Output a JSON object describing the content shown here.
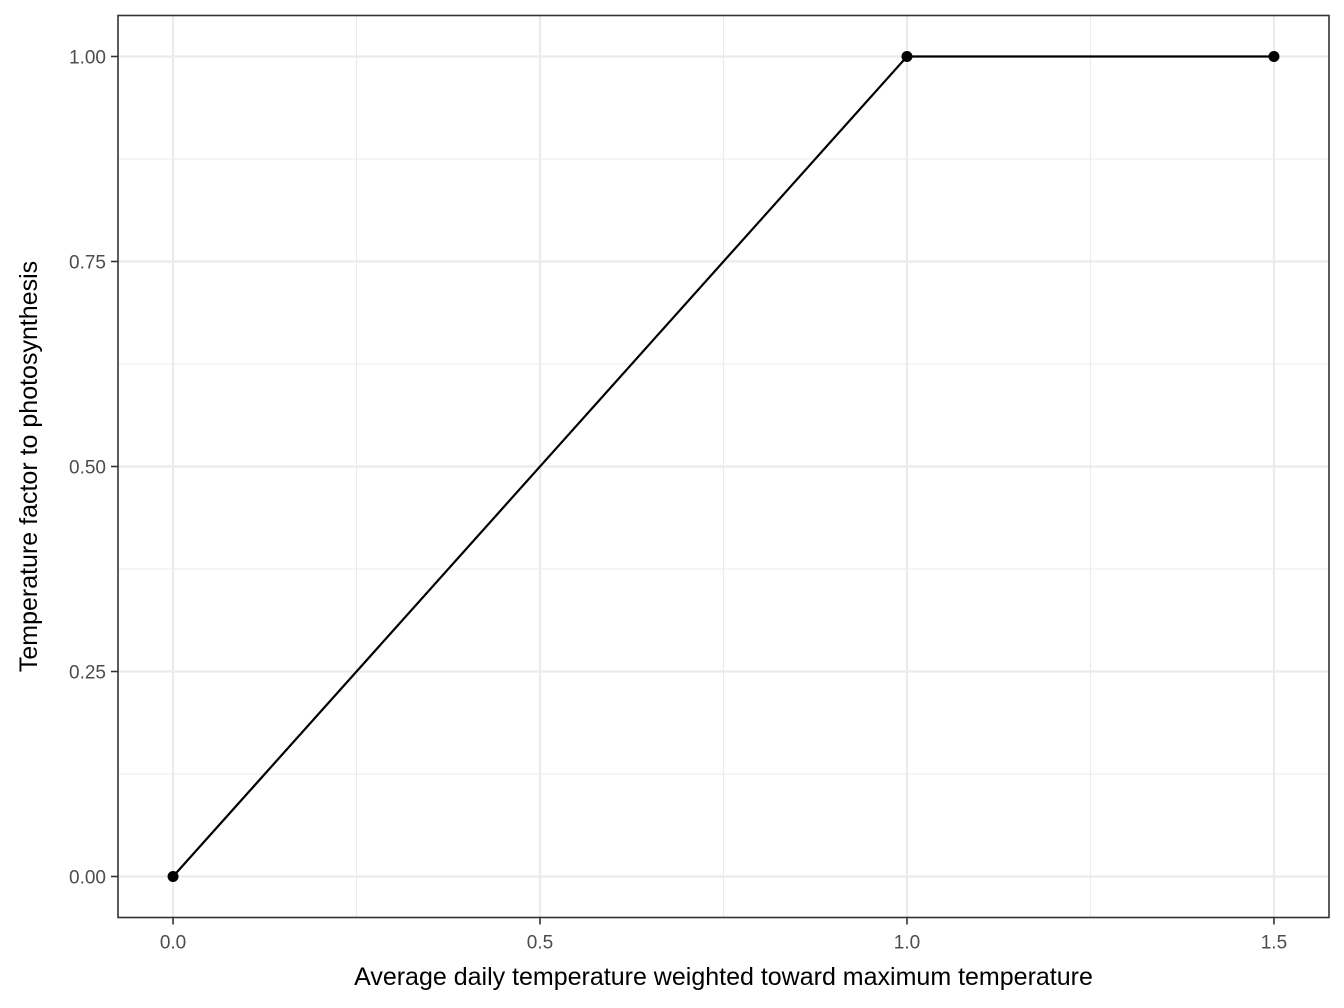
{
  "chart_data": {
    "type": "line",
    "xlabel": "Average daily temperature weighted toward maximum temperature",
    "ylabel": "Temperature factor to photosynthesis",
    "x": [
      0.0,
      1.0,
      1.5
    ],
    "series": [
      {
        "values": [
          0.0,
          1.0,
          1.0
        ]
      }
    ],
    "markers": true,
    "xlim": [
      -0.075,
      1.575
    ],
    "ylim": [
      -0.05,
      1.05
    ],
    "x_ticks": [
      0.0,
      0.5,
      1.0,
      1.5
    ],
    "x_tick_labels": [
      "0.0",
      "0.5",
      "1.0",
      "1.5"
    ],
    "y_ticks": [
      0.0,
      0.25,
      0.5,
      0.75,
      1.0
    ],
    "y_tick_labels": [
      "0.00",
      "0.25",
      "0.50",
      "0.75",
      "1.00"
    ],
    "grid": true,
    "theme": "bw",
    "colors": {
      "line": "#000000",
      "point": "#000000",
      "grid": "#ebebeb",
      "panel_border": "#333333",
      "tick_label": "#4d4d4d"
    }
  }
}
